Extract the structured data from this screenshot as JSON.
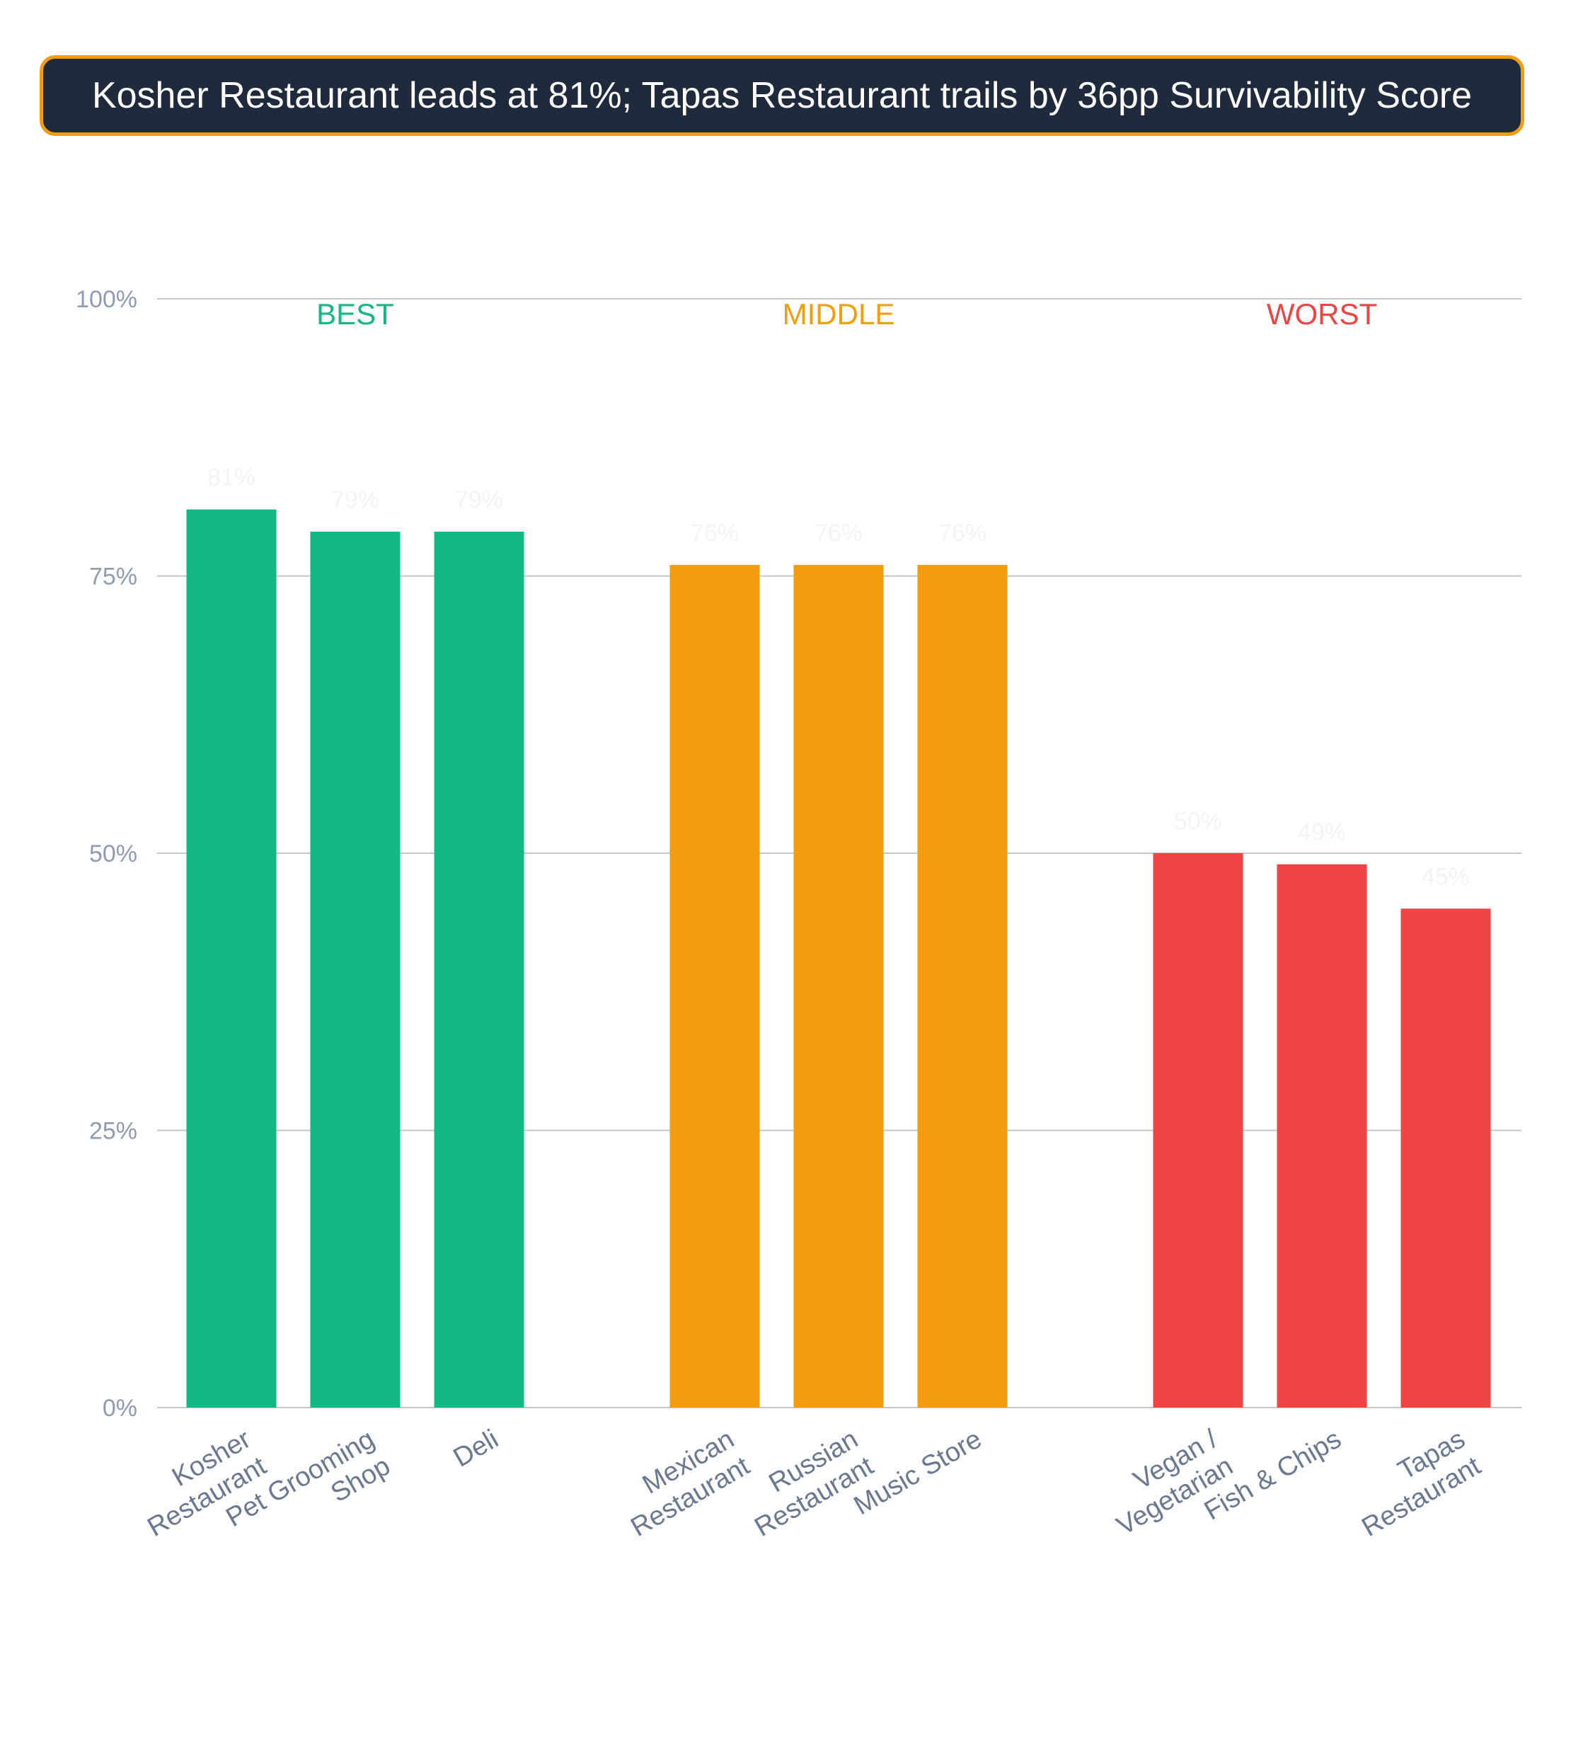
{
  "title": "Kosher Restaurant leads at 81%; Tapas Restaurant trails by 36pp Survivability Score",
  "chart_data": {
    "type": "bar",
    "ylim": [
      0,
      100
    ],
    "yticks": [
      "0%",
      "25%",
      "50%",
      "75%",
      "100%"
    ],
    "grid": true,
    "groups": [
      {
        "label": "BEST",
        "color": "#12b886",
        "bars": [
          {
            "category": [
              "Kosher",
              "Restaurant"
            ],
            "value": 81,
            "label": "81%"
          },
          {
            "category": [
              "Pet Grooming",
              "Shop"
            ],
            "value": 79,
            "label": "79%"
          },
          {
            "category": [
              "Deli"
            ],
            "value": 79,
            "label": "79%"
          }
        ]
      },
      {
        "label": "MIDDLE",
        "color": "#f29d0e",
        "bars": [
          {
            "category": [
              "Mexican",
              "Restaurant"
            ],
            "value": 76,
            "label": "76%"
          },
          {
            "category": [
              "Russian",
              "Restaurant"
            ],
            "value": 76,
            "label": "76%"
          },
          {
            "category": [
              "Music Store"
            ],
            "value": 76,
            "label": "76%"
          }
        ]
      },
      {
        "label": "WORST",
        "color": "#ef4444",
        "bars": [
          {
            "category": [
              "Vegan /",
              "Vegetarian"
            ],
            "value": 50,
            "label": "50%"
          },
          {
            "category": [
              "Fish & Chips"
            ],
            "value": 49,
            "label": "49%"
          },
          {
            "category": [
              "Tapas",
              "Restaurant"
            ],
            "value": 45,
            "label": "45%"
          }
        ]
      }
    ]
  }
}
